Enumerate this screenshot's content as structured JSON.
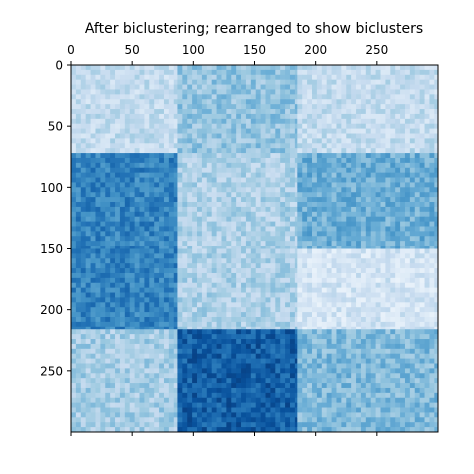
{
  "chart_data": {
    "type": "heatmap",
    "title": "After biclustering; rearranged to show biclusters",
    "xlim": [
      0,
      300
    ],
    "ylim": [
      300,
      0
    ],
    "x_ticks": [
      0,
      50,
      100,
      150,
      200,
      250
    ],
    "y_ticks": [
      0,
      50,
      100,
      150,
      200,
      250
    ],
    "x_tick_position": "top-and-bottom",
    "colormap": "Blues",
    "noise": true,
    "col_blocks": [
      0,
      87,
      185,
      300
    ],
    "row_blocks": [
      0,
      72,
      150,
      216,
      300
    ],
    "block_intensity": [
      [
        0.25,
        0.4,
        0.25
      ],
      [
        0.68,
        0.32,
        0.5
      ],
      [
        0.68,
        0.32,
        0.18
      ],
      [
        0.35,
        0.82,
        0.45
      ]
    ],
    "colors": {
      "low": "#f7fbff",
      "high": "#08306b"
    }
  }
}
